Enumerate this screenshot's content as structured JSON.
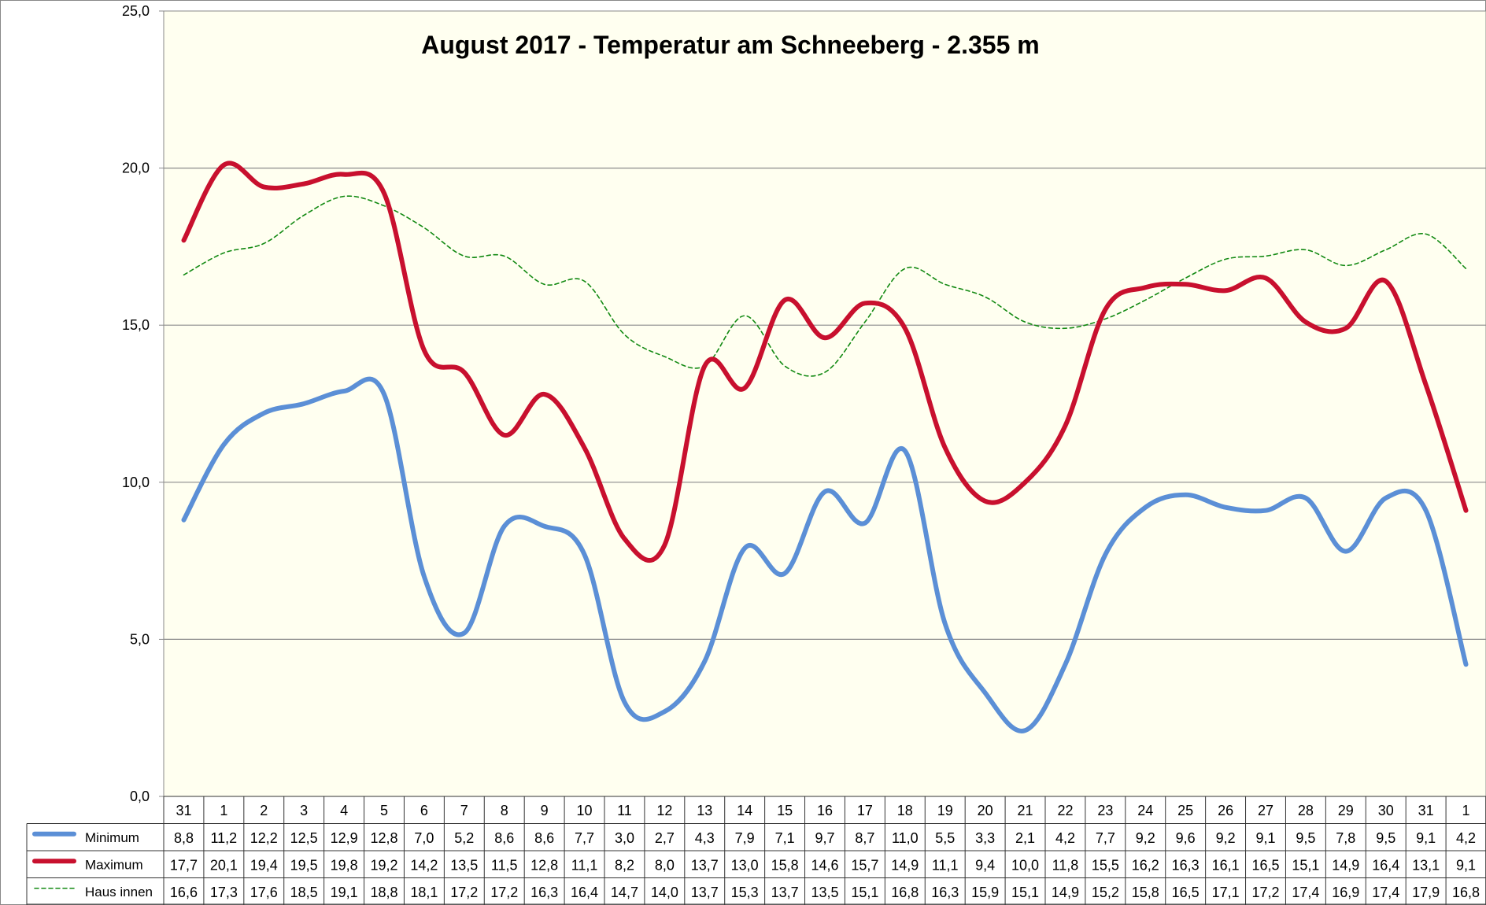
{
  "chart_data": {
    "type": "line",
    "title": "August 2017 - Temperatur am Schneeberg - 2.355 m",
    "xlabel": "",
    "ylabel": "",
    "ylim": [
      0,
      25
    ],
    "ytick_labels": [
      "0,0",
      "5,0",
      "10,0",
      "15,0",
      "20,0",
      "25,0"
    ],
    "yticks": [
      0,
      5,
      10,
      15,
      20,
      25
    ],
    "grid": true,
    "legend": "data-table-left",
    "categories": [
      "31",
      "1",
      "2",
      "3",
      "4",
      "5",
      "6",
      "7",
      "8",
      "9",
      "10",
      "11",
      "12",
      "13",
      "14",
      "15",
      "16",
      "17",
      "18",
      "19",
      "20",
      "21",
      "22",
      "23",
      "24",
      "25",
      "26",
      "27",
      "28",
      "29",
      "30",
      "31",
      "1"
    ],
    "series": [
      {
        "name": "Minimum",
        "color": "#5b8fd6",
        "style": "solid-thick",
        "values": [
          8.8,
          11.2,
          12.2,
          12.5,
          12.9,
          12.8,
          7.0,
          5.2,
          8.6,
          8.6,
          7.7,
          3.0,
          2.7,
          4.3,
          7.9,
          7.1,
          9.7,
          8.7,
          11.0,
          5.5,
          3.3,
          2.1,
          4.2,
          7.7,
          9.2,
          9.6,
          9.2,
          9.1,
          9.5,
          7.8,
          9.5,
          9.1,
          4.2
        ],
        "labels": [
          "8,8",
          "11,2",
          "12,2",
          "12,5",
          "12,9",
          "12,8",
          "7,0",
          "5,2",
          "8,6",
          "8,6",
          "7,7",
          "3,0",
          "2,7",
          "4,3",
          "7,9",
          "7,1",
          "9,7",
          "8,7",
          "11,0",
          "5,5",
          "3,3",
          "2,1",
          "4,2",
          "7,7",
          "9,2",
          "9,6",
          "9,2",
          "9,1",
          "9,5",
          "7,8",
          "9,5",
          "9,1",
          "4,2"
        ]
      },
      {
        "name": "Maximum",
        "color": "#c8102e",
        "style": "solid-thick",
        "values": [
          17.7,
          20.1,
          19.4,
          19.5,
          19.8,
          19.2,
          14.2,
          13.5,
          11.5,
          12.8,
          11.1,
          8.2,
          8.0,
          13.7,
          13.0,
          15.8,
          14.6,
          15.7,
          14.9,
          11.1,
          9.4,
          10.0,
          11.8,
          15.5,
          16.2,
          16.3,
          16.1,
          16.5,
          15.1,
          14.9,
          16.4,
          13.1,
          9.1
        ],
        "labels": [
          "17,7",
          "20,1",
          "19,4",
          "19,5",
          "19,8",
          "19,2",
          "14,2",
          "13,5",
          "11,5",
          "12,8",
          "11,1",
          "8,2",
          "8,0",
          "13,7",
          "13,0",
          "15,8",
          "14,6",
          "15,7",
          "14,9",
          "11,1",
          "9,4",
          "10,0",
          "11,8",
          "15,5",
          "16,2",
          "16,3",
          "16,1",
          "16,5",
          "15,1",
          "14,9",
          "16,4",
          "13,1",
          "9,1"
        ]
      },
      {
        "name": "Haus innen",
        "color": "#138a13",
        "style": "dashed-thin",
        "values": [
          16.6,
          17.3,
          17.6,
          18.5,
          19.1,
          18.8,
          18.1,
          17.2,
          17.2,
          16.3,
          16.4,
          14.7,
          14.0,
          13.7,
          15.3,
          13.7,
          13.5,
          15.1,
          16.8,
          16.3,
          15.9,
          15.1,
          14.9,
          15.2,
          15.8,
          16.5,
          17.1,
          17.2,
          17.4,
          16.9,
          17.4,
          17.9,
          16.8
        ],
        "labels": [
          "16,6",
          "17,3",
          "17,6",
          "18,5",
          "19,1",
          "18,8",
          "18,1",
          "17,2",
          "17,2",
          "16,3",
          "16,4",
          "14,7",
          "14,0",
          "13,7",
          "15,3",
          "13,7",
          "13,5",
          "15,1",
          "16,8",
          "16,3",
          "15,9",
          "15,1",
          "14,9",
          "15,2",
          "15,8",
          "16,5",
          "17,1",
          "17,2",
          "17,4",
          "16,9",
          "17,4",
          "17,9",
          "16,8"
        ]
      }
    ]
  }
}
